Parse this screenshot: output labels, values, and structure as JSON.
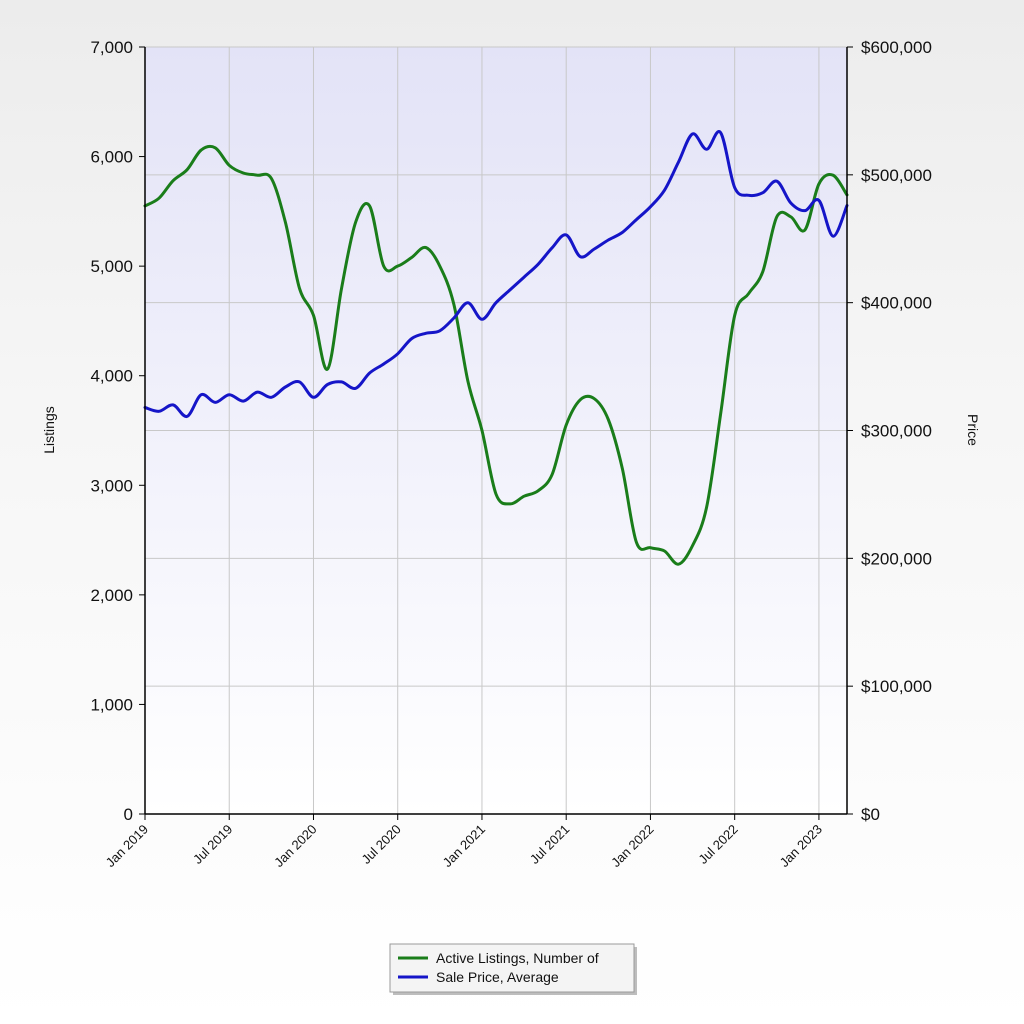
{
  "chart_data": {
    "type": "line",
    "xlabel": "",
    "x_tick_labels": [
      "Jan 2019",
      "Jul 2019",
      "Jan 2020",
      "Jul 2020",
      "Jan 2021",
      "Jul 2021",
      "Jan 2022",
      "Jul 2022",
      "Jan 2023"
    ],
    "y_left": {
      "label": "Listings",
      "range": [
        0,
        7000
      ],
      "ticks": [
        "0",
        "1,000",
        "2,000",
        "3,000",
        "4,000",
        "5,000",
        "6,000",
        "7,000"
      ]
    },
    "y_right": {
      "label": "Price",
      "range": [
        0,
        600000
      ],
      "ticks": [
        "$0",
        "$100,000",
        "$200,000",
        "$300,000",
        "$400,000",
        "$500,000",
        "$600,000"
      ]
    },
    "grid": true,
    "legend_position": "bottom-center",
    "series": [
      {
        "name": "Active Listings, Number of",
        "axis": "left",
        "color": "#1a7d1a",
        "points": [
          [
            "2019-01",
            5550
          ],
          [
            "2019-02",
            5620
          ],
          [
            "2019-03",
            5780
          ],
          [
            "2019-04",
            5880
          ],
          [
            "2019-05",
            6060
          ],
          [
            "2019-06",
            6080
          ],
          [
            "2019-07",
            5920
          ],
          [
            "2019-08",
            5850
          ],
          [
            "2019-09",
            5830
          ],
          [
            "2019-10",
            5800
          ],
          [
            "2019-11",
            5400
          ],
          [
            "2019-12",
            4800
          ],
          [
            "2020-01",
            4550
          ],
          [
            "2020-02",
            4060
          ],
          [
            "2020-03",
            4800
          ],
          [
            "2020-04",
            5400
          ],
          [
            "2020-05",
            5550
          ],
          [
            "2020-06",
            5000
          ],
          [
            "2020-07",
            5000
          ],
          [
            "2020-08",
            5080
          ],
          [
            "2020-09",
            5170
          ],
          [
            "2020-10",
            5000
          ],
          [
            "2020-11",
            4650
          ],
          [
            "2020-12",
            3950
          ],
          [
            "2021-01",
            3500
          ],
          [
            "2021-02",
            2920
          ],
          [
            "2021-03",
            2830
          ],
          [
            "2021-04",
            2900
          ],
          [
            "2021-05",
            2950
          ],
          [
            "2021-06",
            3100
          ],
          [
            "2021-07",
            3550
          ],
          [
            "2021-08",
            3780
          ],
          [
            "2021-09",
            3790
          ],
          [
            "2021-10",
            3600
          ],
          [
            "2021-11",
            3150
          ],
          [
            "2021-12",
            2480
          ],
          [
            "2022-01",
            2430
          ],
          [
            "2022-02",
            2400
          ],
          [
            "2022-03",
            2280
          ],
          [
            "2022-04",
            2450
          ],
          [
            "2022-05",
            2800
          ],
          [
            "2022-06",
            3650
          ],
          [
            "2022-07",
            4550
          ],
          [
            "2022-08",
            4750
          ],
          [
            "2022-09",
            4950
          ],
          [
            "2022-10",
            5450
          ],
          [
            "2022-11",
            5450
          ],
          [
            "2022-12",
            5330
          ],
          [
            "2023-01",
            5750
          ],
          [
            "2023-02",
            5830
          ],
          [
            "2023-03",
            5650
          ]
        ]
      },
      {
        "name": "Sale Price, Average",
        "axis": "right",
        "color": "#1515c8",
        "points": [
          [
            "2019-01",
            318000
          ],
          [
            "2019-02",
            315000
          ],
          [
            "2019-03",
            320000
          ],
          [
            "2019-04",
            311000
          ],
          [
            "2019-05",
            328000
          ],
          [
            "2019-06",
            322000
          ],
          [
            "2019-07",
            328000
          ],
          [
            "2019-08",
            323000
          ],
          [
            "2019-09",
            330000
          ],
          [
            "2019-10",
            326000
          ],
          [
            "2019-11",
            334000
          ],
          [
            "2019-12",
            338000
          ],
          [
            "2020-01",
            326000
          ],
          [
            "2020-02",
            336000
          ],
          [
            "2020-03",
            338000
          ],
          [
            "2020-04",
            333000
          ],
          [
            "2020-05",
            345000
          ],
          [
            "2020-06",
            352000
          ],
          [
            "2020-07",
            360000
          ],
          [
            "2020-08",
            372000
          ],
          [
            "2020-09",
            376000
          ],
          [
            "2020-10",
            378000
          ],
          [
            "2020-11",
            388000
          ],
          [
            "2020-12",
            400000
          ],
          [
            "2021-01",
            387000
          ],
          [
            "2021-02",
            400000
          ],
          [
            "2021-03",
            410000
          ],
          [
            "2021-04",
            420000
          ],
          [
            "2021-05",
            430000
          ],
          [
            "2021-06",
            443000
          ],
          [
            "2021-07",
            453000
          ],
          [
            "2021-08",
            436000
          ],
          [
            "2021-09",
            442000
          ],
          [
            "2021-10",
            449000
          ],
          [
            "2021-11",
            455000
          ],
          [
            "2021-12",
            465000
          ],
          [
            "2022-01",
            475000
          ],
          [
            "2022-02",
            488000
          ],
          [
            "2022-03",
            510000
          ],
          [
            "2022-04",
            532000
          ],
          [
            "2022-05",
            520000
          ],
          [
            "2022-06",
            533000
          ],
          [
            "2022-07",
            490000
          ],
          [
            "2022-08",
            484000
          ],
          [
            "2022-09",
            486000
          ],
          [
            "2022-10",
            495000
          ],
          [
            "2022-11",
            478000
          ],
          [
            "2022-12",
            472000
          ],
          [
            "2023-01",
            480000
          ],
          [
            "2023-02",
            452000
          ],
          [
            "2023-03",
            476000
          ]
        ]
      }
    ]
  }
}
